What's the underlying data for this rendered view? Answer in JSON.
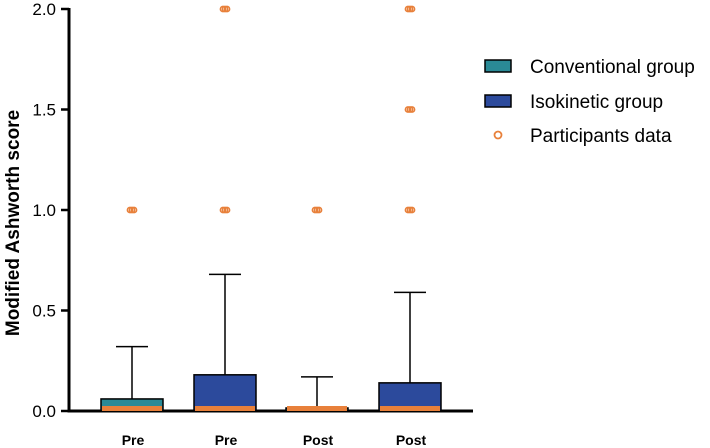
{
  "chart_data": {
    "type": "box",
    "title": "",
    "xlabel": "",
    "ylabel": "Modified Ashworth score",
    "ylim": [
      0,
      2.0
    ],
    "yticks": [
      0.0,
      0.5,
      1.0,
      1.5,
      2.0
    ],
    "ytick_labels": [
      "0.0",
      "0.5",
      "1.0",
      "1.5",
      "2.0"
    ],
    "categories": [
      "Pre",
      "Pre",
      "Post",
      "Post"
    ],
    "boxes": [
      {
        "category": "Pre",
        "group": "Conventional group",
        "q1": 0,
        "median": 0,
        "q3": 0.06,
        "whisker_low": 0,
        "whisker_high": 0.32,
        "points": [
          1.0
        ]
      },
      {
        "category": "Pre",
        "group": "Isokinetic group",
        "q1": 0,
        "median": 0,
        "q3": 0.18,
        "whisker_low": 0,
        "whisker_high": 0.68,
        "points": [
          1.0,
          2.0
        ]
      },
      {
        "category": "Post",
        "group": "Conventional group",
        "q1": 0,
        "median": 0,
        "q3": 0.015,
        "whisker_low": 0,
        "whisker_high": 0.17,
        "points": [
          1.0
        ]
      },
      {
        "category": "Post",
        "group": "Isokinetic group",
        "q1": 0,
        "median": 0,
        "q3": 0.14,
        "whisker_low": 0,
        "whisker_high": 0.59,
        "points": [
          1.0,
          1.5,
          2.0
        ]
      }
    ],
    "legend": {
      "position": "right",
      "entries": [
        {
          "label": "Conventional group",
          "kind": "box",
          "color": "#2a8a96"
        },
        {
          "label": "Isokinetic group",
          "kind": "box",
          "color": "#2c4a9c"
        },
        {
          "label": "Participants data",
          "kind": "point",
          "color": "#e8803a"
        }
      ]
    },
    "colors": {
      "conventional": "#2a8a96",
      "isokinetic": "#2c4a9c",
      "points": "#e8803a",
      "median": "#e8803a",
      "axis": "#000000"
    },
    "grid": false
  }
}
